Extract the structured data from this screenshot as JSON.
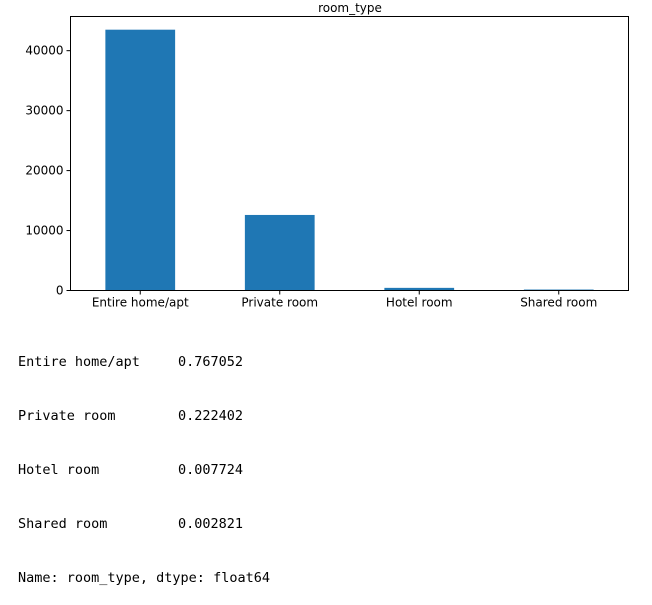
{
  "chart_data": {
    "type": "bar",
    "title": "room_type",
    "categories": [
      "Entire home/apt",
      "Private room",
      "Hotel room",
      "Shared room"
    ],
    "values": [
      43500,
      12600,
      440,
      160
    ],
    "ylim": [
      0,
      45700
    ],
    "yticks": [
      0,
      10000,
      20000,
      30000,
      40000
    ],
    "ytick_labels": [
      "0",
      "10000",
      "20000",
      "30000",
      "40000"
    ],
    "bar_color": "#1f77b4",
    "grid": false,
    "xlabel": "",
    "ylabel": ""
  },
  "output": {
    "rows": [
      {
        "label": "Entire home/apt",
        "value": "0.767052"
      },
      {
        "label": "Private room",
        "value": "0.222402"
      },
      {
        "label": "Hotel room",
        "value": "0.007724"
      },
      {
        "label": "Shared room",
        "value": "0.002821"
      }
    ],
    "footer": "Name: room_type, dtype: float64"
  }
}
